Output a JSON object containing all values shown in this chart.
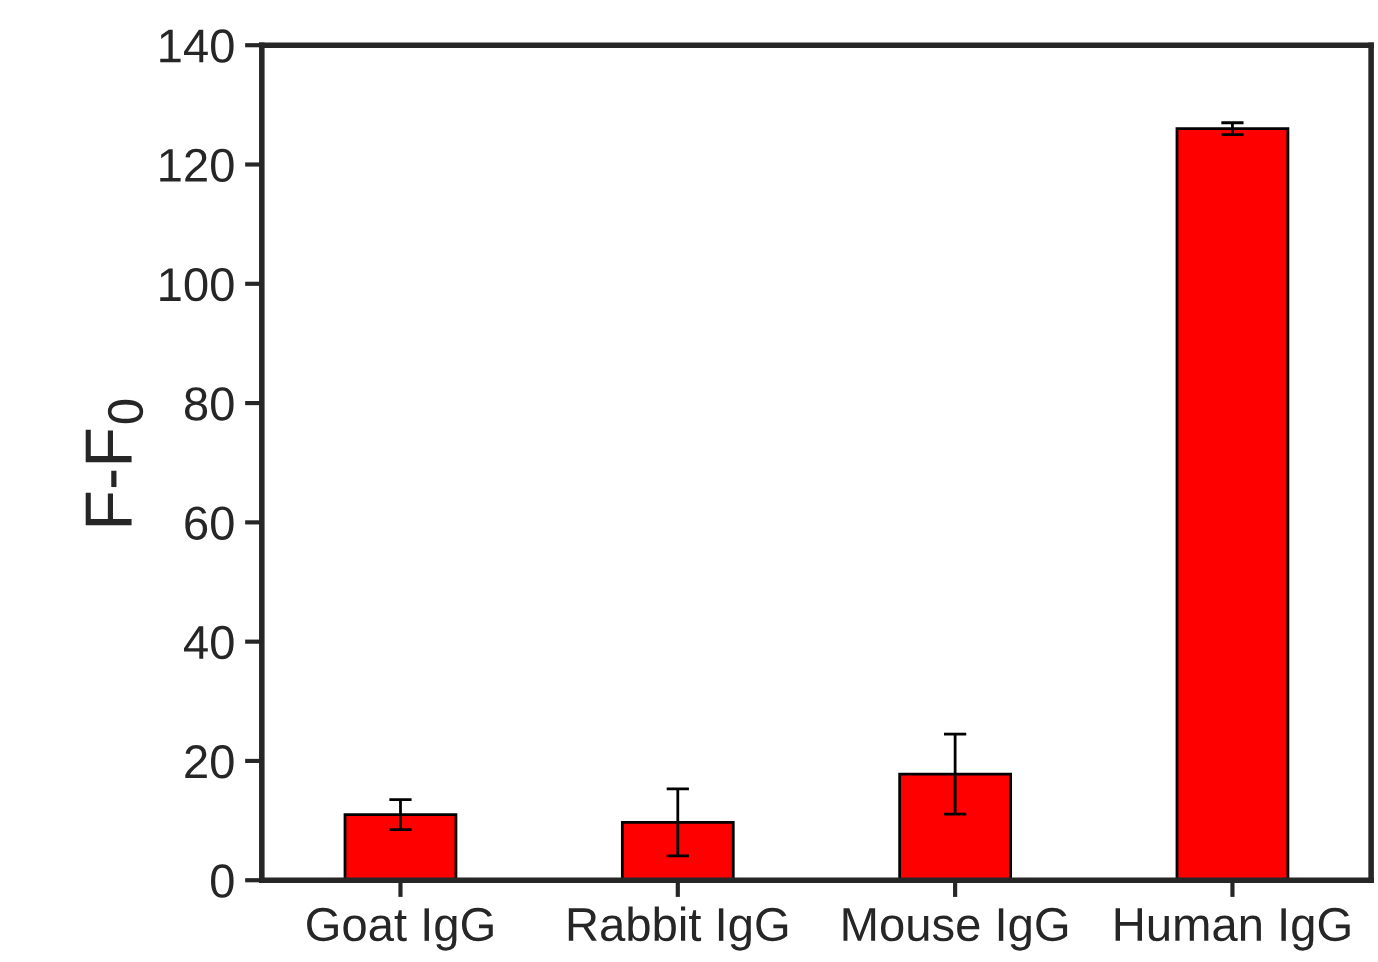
{
  "chart_data": {
    "type": "bar",
    "ylabel": "F-F$_{0}$",
    "categories": [
      "Goat IgG",
      "Rabbit IgG",
      "Mouse IgG",
      "Human IgG"
    ],
    "values": [
      11.0,
      9.7,
      17.8,
      126
    ],
    "errors": [
      2.5,
      5.6,
      6.7,
      1
    ],
    "color": "#ff0000",
    "ylim": [
      0,
      140
    ],
    "yticks": [
      0,
      20,
      40,
      60,
      80,
      100,
      120,
      140
    ],
    "grid": false
  }
}
